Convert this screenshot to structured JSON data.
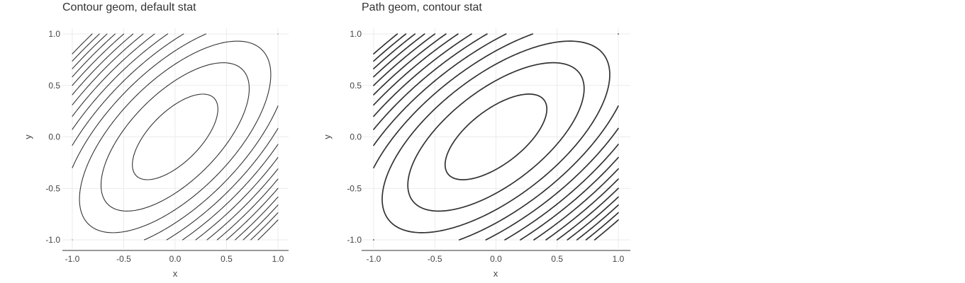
{
  "chart_data": [
    {
      "type": "contour",
      "title": "Contour geom, default stat",
      "xlabel": "x",
      "ylabel": "y",
      "xlim": [
        -1.0,
        1.0
      ],
      "ylim": [
        -1.0,
        1.0
      ],
      "xticks": [
        -1.0,
        -0.5,
        0.0,
        0.5,
        1.0
      ],
      "yticks": [
        -1.0,
        -0.5,
        0.0,
        0.5,
        1.0
      ],
      "xtick_labels": [
        "-1.0",
        "-0.5",
        "0.0",
        "0.5",
        "1.0"
      ],
      "ytick_labels": [
        "-1.0",
        "-0.5",
        "0.0",
        "0.5",
        "1.0"
      ],
      "grid": true,
      "line_color": "#333333",
      "surface": "x^2 + y^2 - 1.3*x*y",
      "levels": [
        0.1,
        0.3,
        0.5,
        0.7,
        0.9,
        1.1,
        1.3,
        1.5,
        1.7,
        1.9,
        2.1,
        2.3,
        2.5,
        2.7
      ]
    },
    {
      "type": "path",
      "title": "Path geom, contour stat",
      "xlabel": "x",
      "ylabel": "y",
      "xlim": [
        -1.0,
        1.0
      ],
      "ylim": [
        -1.0,
        1.0
      ],
      "xticks": [
        -1.0,
        -0.5,
        0.0,
        0.5,
        1.0
      ],
      "yticks": [
        -1.0,
        -0.5,
        0.0,
        0.5,
        1.0
      ],
      "xtick_labels": [
        "-1.0",
        "-0.5",
        "0.0",
        "0.5",
        "1.0"
      ],
      "ytick_labels": [
        "-1.0",
        "-0.5",
        "0.0",
        "0.5",
        "1.0"
      ],
      "grid": true,
      "line_color": "#333333",
      "surface": "x^2 + y^2 - 1.3*x*y",
      "levels": [
        0.1,
        0.3,
        0.5,
        0.7,
        0.9,
        1.1,
        1.3,
        1.5,
        1.7,
        1.9,
        2.1,
        2.3,
        2.5,
        2.7
      ]
    }
  ]
}
